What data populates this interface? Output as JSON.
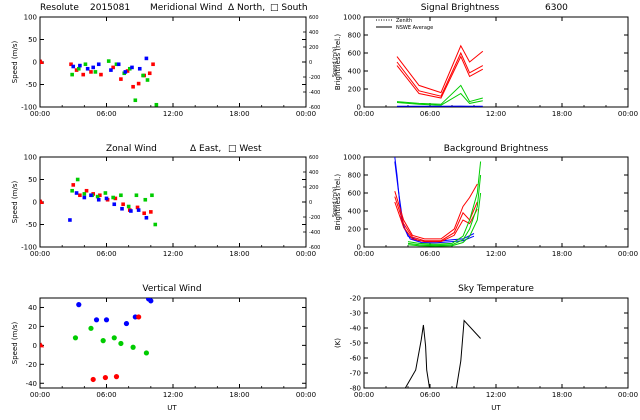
{
  "header": {
    "station": "Resolute",
    "date_code": "2015081",
    "signal_title": "Signal Brightness",
    "wavelength": "6300"
  },
  "x_axis": {
    "label": "UT",
    "ticks": [
      "00:00",
      "06:00",
      "12:00",
      "18:00",
      "00:00"
    ]
  },
  "chart_data": [
    {
      "id": "meridional",
      "type": "scatter",
      "title": "Meridional Wind",
      "legend": {
        "tri": "Δ North,",
        "sq": "□ South"
      },
      "ylabel": "Speed (m/s)",
      "ylabel_right": "Speed (m/s)",
      "ylim": [
        -100,
        100
      ],
      "yticks": [
        -100,
        -50,
        0,
        50,
        100
      ],
      "right_ticks": [
        "-600",
        "-400",
        "-200",
        "0",
        "200",
        "400",
        "600"
      ],
      "xlim": [
        0,
        24
      ],
      "series": [
        {
          "name": "zero",
          "color": "#ff0000",
          "marker": "tri",
          "x": [
            0.1
          ],
          "y": [
            0
          ]
        },
        {
          "name": "red",
          "color": "#ff0000",
          "marker": "sq",
          "x": [
            2.8,
            3.3,
            3.9,
            4.6,
            5.5,
            6.6,
            7.3,
            7.9,
            8.4,
            8.9,
            9.4,
            9.9,
            10.2
          ],
          "y": [
            -5,
            -18,
            -28,
            -22,
            -28,
            -12,
            -38,
            -20,
            -55,
            -48,
            -30,
            -25,
            -5
          ]
        },
        {
          "name": "green",
          "color": "#00cc00",
          "marker": "sq",
          "x": [
            2.9,
            3.5,
            4.1,
            5.0,
            6.2,
            6.9,
            7.6,
            8.1,
            8.6,
            9.3,
            9.7,
            10.5
          ],
          "y": [
            -28,
            -15,
            -5,
            -22,
            2,
            -5,
            -25,
            -15,
            -85,
            -30,
            -40,
            -95
          ]
        },
        {
          "name": "blue",
          "color": "#0000ff",
          "marker": "sq",
          "x": [
            3.0,
            3.6,
            4.3,
            4.8,
            5.3,
            6.4,
            7.1,
            7.7,
            8.3,
            9.0,
            9.6
          ],
          "y": [
            -10,
            -8,
            -15,
            -12,
            -5,
            -18,
            -5,
            -22,
            -12,
            -15,
            8
          ]
        }
      ]
    },
    {
      "id": "signal",
      "type": "line",
      "title": "Signal Brightness",
      "legend": [
        "Zenith",
        "NSWE Average"
      ],
      "ylabel": "Brightness (rel.)",
      "ylim": [
        0,
        1000
      ],
      "yticks": [
        0,
        200,
        400,
        600,
        800,
        1000
      ],
      "xlim": [
        0,
        24
      ],
      "series": [
        {
          "name": "Zenith",
          "color": "#ff0000",
          "x": [
            3.0,
            5.0,
            7.0,
            8.8,
            9.6,
            10.8
          ],
          "y": [
            560,
            240,
            160,
            680,
            500,
            620
          ]
        },
        {
          "name": "red-2",
          "color": "#ff0000",
          "x": [
            3.0,
            5.0,
            7.0,
            8.8,
            9.6,
            10.8
          ],
          "y": [
            500,
            180,
            120,
            600,
            380,
            460
          ]
        },
        {
          "name": "red-3",
          "color": "#ff0000",
          "x": [
            3.0,
            5.0,
            7.0,
            8.8,
            9.6,
            10.8
          ],
          "y": [
            460,
            150,
            100,
            560,
            340,
            420
          ]
        },
        {
          "name": "green-1",
          "color": "#00cc00",
          "x": [
            3.0,
            5.0,
            7.0,
            8.8,
            9.6,
            10.8
          ],
          "y": [
            60,
            40,
            30,
            240,
            60,
            100
          ]
        },
        {
          "name": "green-2",
          "color": "#00cc00",
          "x": [
            3.0,
            5.0,
            7.0,
            8.8,
            9.6,
            10.8
          ],
          "y": [
            50,
            30,
            20,
            150,
            40,
            70
          ]
        },
        {
          "name": "NSWE Average",
          "color": "#0000ff",
          "x": [
            3.0,
            5.0,
            7.0,
            8.8,
            9.6,
            10.8
          ],
          "y": [
            8,
            8,
            8,
            10,
            8,
            8
          ]
        }
      ]
    },
    {
      "id": "zonal",
      "type": "scatter",
      "title": "Zonal Wind",
      "legend": {
        "tri": "Δ East,",
        "sq": "□ West"
      },
      "ylabel": "Speed (m/s)",
      "ylabel_right": "Speed (m/s)",
      "ylim": [
        -100,
        100
      ],
      "yticks": [
        -100,
        -50,
        0,
        50,
        100
      ],
      "right_ticks": [
        "-600",
        "-400",
        "-200",
        "0",
        "200",
        "400",
        "600"
      ],
      "xlim": [
        0,
        24
      ],
      "series": [
        {
          "name": "zero",
          "color": "#ff0000",
          "marker": "tri",
          "x": [
            0.1
          ],
          "y": [
            0
          ]
        },
        {
          "name": "red",
          "color": "#ff0000",
          "marker": "sq",
          "x": [
            3.0,
            3.6,
            4.2,
            4.8,
            5.4,
            6.1,
            6.8,
            7.5,
            8.1,
            8.8,
            9.4,
            10.0
          ],
          "y": [
            38,
            15,
            25,
            18,
            15,
            5,
            8,
            -5,
            -18,
            -12,
            -25,
            -22
          ]
        },
        {
          "name": "green",
          "color": "#00cc00",
          "marker": "sq",
          "x": [
            2.9,
            3.4,
            4.0,
            4.7,
            5.2,
            5.9,
            6.6,
            7.3,
            8.0,
            8.7,
            9.5,
            10.1,
            10.4
          ],
          "y": [
            25,
            50,
            18,
            15,
            12,
            20,
            10,
            15,
            -10,
            15,
            5,
            15,
            -50
          ]
        },
        {
          "name": "blue",
          "color": "#0000ff",
          "marker": "sq",
          "x": [
            2.7,
            3.3,
            4.0,
            4.6,
            5.3,
            6.0,
            6.7,
            7.4,
            8.2,
            8.9,
            9.6
          ],
          "y": [
            -40,
            20,
            10,
            15,
            5,
            8,
            -5,
            -15,
            -20,
            -18,
            -35
          ]
        }
      ]
    },
    {
      "id": "background",
      "type": "line",
      "title": "Background Brightness",
      "ylabel": "Brightness (rel.)",
      "ylim": [
        0,
        1000
      ],
      "yticks": [
        0,
        200,
        400,
        600,
        800,
        1000
      ],
      "xlim": [
        0,
        24
      ],
      "series": [
        {
          "name": "blue-1",
          "color": "#0000ff",
          "x": [
            2.8,
            3.0,
            3.4,
            4.0,
            5.0,
            6.5,
            8.0,
            9.0,
            10.0
          ],
          "y": [
            1000,
            800,
            300,
            120,
            70,
            60,
            80,
            90,
            150
          ]
        },
        {
          "name": "blue-2",
          "color": "#0000ff",
          "x": [
            2.8,
            3.1,
            3.6,
            4.2,
            5.2,
            6.5,
            8.0,
            9.0,
            10.0
          ],
          "y": [
            950,
            650,
            220,
            90,
            50,
            45,
            60,
            70,
            120
          ]
        },
        {
          "name": "red-1",
          "color": "#ff0000",
          "x": [
            2.8,
            3.6,
            4.4,
            5.5,
            7.0,
            8.2,
            9.0,
            9.6,
            10.3
          ],
          "y": [
            620,
            300,
            130,
            90,
            90,
            200,
            450,
            550,
            700
          ]
        },
        {
          "name": "red-2",
          "color": "#ff0000",
          "x": [
            2.8,
            3.6,
            4.4,
            5.5,
            7.0,
            8.2,
            9.0,
            9.6,
            10.3
          ],
          "y": [
            560,
            260,
            110,
            70,
            70,
            160,
            380,
            300,
            500
          ]
        },
        {
          "name": "red-3",
          "color": "#ff0000",
          "x": [
            2.8,
            3.6,
            4.4,
            5.5,
            7.0,
            8.2,
            9.0,
            9.6,
            10.3
          ],
          "y": [
            500,
            220,
            90,
            60,
            60,
            130,
            300,
            260,
            420
          ]
        },
        {
          "name": "green-1",
          "color": "#00cc00",
          "x": [
            4.0,
            5.0,
            6.5,
            8.0,
            9.0,
            9.6,
            10.3,
            10.6
          ],
          "y": [
            60,
            40,
            30,
            40,
            120,
            300,
            600,
            950
          ]
        },
        {
          "name": "green-2",
          "color": "#00cc00",
          "x": [
            4.0,
            5.0,
            6.5,
            8.0,
            9.0,
            9.6,
            10.3,
            10.6
          ],
          "y": [
            40,
            25,
            20,
            25,
            80,
            200,
            450,
            800
          ]
        },
        {
          "name": "green-3",
          "color": "#00cc00",
          "x": [
            4.0,
            5.0,
            6.5,
            8.0,
            9.0,
            9.6,
            10.3,
            10.6
          ],
          "y": [
            25,
            15,
            10,
            15,
            50,
            120,
            300,
            600
          ]
        }
      ]
    },
    {
      "id": "vertical",
      "type": "scatter",
      "title": "Vertical Wind",
      "ylabel": "Speed (m/s)",
      "ylim": [
        -45,
        50
      ],
      "yticks": [
        -40,
        -20,
        0,
        20,
        40
      ],
      "xlim": [
        0,
        24
      ],
      "series": [
        {
          "name": "zero",
          "color": "#ff0000",
          "marker": "tri",
          "x": [
            0.1
          ],
          "y": [
            0
          ]
        },
        {
          "name": "blue",
          "color": "#0000ff",
          "marker": "dot",
          "x": [
            3.5,
            5.1,
            6.0,
            7.8,
            8.6,
            9.8,
            10.0
          ],
          "y": [
            43,
            27,
            27,
            23,
            30,
            49,
            47
          ]
        },
        {
          "name": "green",
          "color": "#00cc00",
          "marker": "dot",
          "x": [
            3.2,
            4.6,
            5.7,
            6.7,
            7.3,
            8.4,
            9.6
          ],
          "y": [
            8,
            18,
            5,
            8,
            2,
            -2,
            -8
          ]
        },
        {
          "name": "red",
          "color": "#ff0000",
          "marker": "dot",
          "x": [
            4.8,
            5.9,
            6.9,
            8.9
          ],
          "y": [
            -36,
            -34,
            -33,
            30
          ]
        }
      ]
    },
    {
      "id": "sky",
      "type": "line",
      "title": "Sky Temperature",
      "ylabel": "(K)",
      "ylim": [
        -80,
        -20
      ],
      "yticks": [
        -80,
        -70,
        -60,
        -50,
        -40,
        -30,
        -20
      ],
      "xlim": [
        0,
        24
      ],
      "series": [
        {
          "name": "sky",
          "color": "#000000",
          "x": [
            3.6,
            4.7,
            5.2,
            5.4,
            5.6,
            5.7,
            6.0,
            8.4,
            8.8,
            9.1,
            10.6
          ],
          "y": [
            -82,
            -68,
            -48,
            -38,
            -52,
            -68,
            -82,
            -80,
            -62,
            -35,
            -47
          ]
        }
      ]
    }
  ]
}
